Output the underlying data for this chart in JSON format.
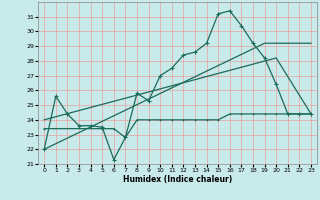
{
  "xlabel": "Humidex (Indice chaleur)",
  "background_color": "#c8eaea",
  "grid_color": "#e8a0a0",
  "line_color": "#1a6b5a",
  "xlim": [
    -0.5,
    23.5
  ],
  "ylim": [
    21,
    32
  ],
  "yticks": [
    21,
    22,
    23,
    24,
    25,
    26,
    27,
    28,
    29,
    30,
    31
  ],
  "xticks": [
    0,
    1,
    2,
    3,
    4,
    5,
    6,
    7,
    8,
    9,
    10,
    11,
    12,
    13,
    14,
    15,
    16,
    17,
    18,
    19,
    20,
    21,
    22,
    23
  ],
  "line1_x": [
    0,
    1,
    2,
    3,
    4,
    5,
    6,
    7,
    8,
    9,
    10,
    11,
    12,
    13,
    14,
    15,
    16,
    17,
    18,
    19,
    20,
    21,
    22,
    23
  ],
  "line1_y": [
    22.0,
    25.6,
    24.4,
    23.6,
    23.6,
    23.5,
    21.3,
    22.8,
    25.8,
    25.3,
    27.0,
    27.5,
    28.4,
    28.6,
    29.2,
    31.2,
    31.4,
    30.4,
    29.2,
    28.2,
    26.4,
    24.4,
    24.4,
    24.4
  ],
  "line2_x": [
    0,
    19,
    23
  ],
  "line2_y": [
    22.0,
    29.2,
    29.2
  ],
  "line3_x": [
    0,
    20,
    23
  ],
  "line3_y": [
    24.0,
    28.2,
    24.4
  ],
  "line4_x": [
    0,
    5,
    6,
    7,
    8,
    9,
    10,
    11,
    12,
    13,
    14,
    15,
    16,
    17,
    18,
    19,
    20,
    21,
    22,
    23
  ],
  "line4_y": [
    23.4,
    23.4,
    23.4,
    22.8,
    24.0,
    24.0,
    24.0,
    24.0,
    24.0,
    24.0,
    24.0,
    24.0,
    24.4,
    24.4,
    24.4,
    24.4,
    24.4,
    24.4,
    24.4,
    24.4
  ]
}
